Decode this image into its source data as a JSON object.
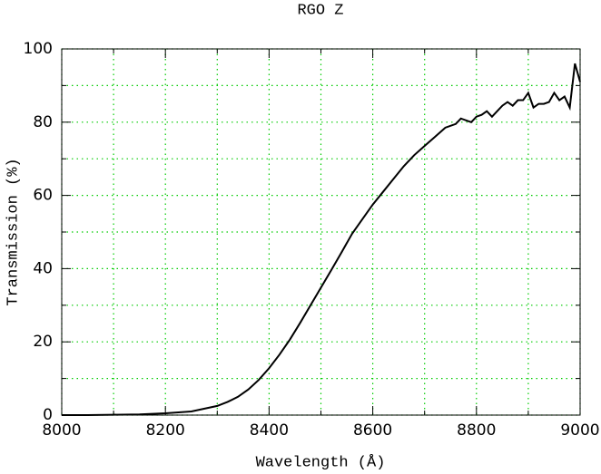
{
  "chart_data": {
    "type": "line",
    "title": "RGO Z",
    "xlabel": "Wavelength (Å)",
    "ylabel": "Transmission (%)",
    "x": [
      8000,
      8050,
      8100,
      8150,
      8200,
      8250,
      8300,
      8320,
      8340,
      8360,
      8380,
      8400,
      8420,
      8440,
      8460,
      8480,
      8500,
      8520,
      8540,
      8560,
      8580,
      8600,
      8620,
      8640,
      8660,
      8680,
      8700,
      8720,
      8740,
      8760,
      8770,
      8780,
      8790,
      8800,
      8810,
      8820,
      8830,
      8840,
      8850,
      8860,
      8870,
      8880,
      8890,
      8900,
      8910,
      8920,
      8930,
      8940,
      8950,
      8960,
      8970,
      8980,
      8990,
      9000
    ],
    "series": [
      {
        "color": "#000000",
        "values": [
          0,
          0,
          0.1,
          0.2,
          0.5,
          1,
          2.5,
          3.6,
          5,
          7,
          9.6,
          12.8,
          16.5,
          20.6,
          25.2,
          30,
          34.8,
          39.6,
          44.5,
          49.5,
          53.5,
          57.5,
          61,
          64.5,
          68,
          71,
          73.5,
          76,
          78.5,
          79.5,
          81,
          80.5,
          80,
          81.5,
          82,
          83,
          81.5,
          83,
          84.5,
          85.5,
          84.5,
          86,
          86,
          88,
          84,
          85,
          85,
          85.5,
          88,
          86,
          87,
          84,
          96,
          91
        ]
      }
    ],
    "xlim": [
      8000,
      9000
    ],
    "xticks": [
      8000,
      8200,
      8400,
      8600,
      8800,
      9000
    ],
    "xminorticks": [
      8100,
      8300,
      8500,
      8700,
      8900
    ],
    "ylim": [
      0,
      100
    ],
    "yticks": [
      0,
      20,
      40,
      60,
      80,
      100
    ],
    "yminorticks": [
      10,
      30,
      50,
      70,
      90
    ],
    "grid": true,
    "grid_color": "#00cc00"
  }
}
